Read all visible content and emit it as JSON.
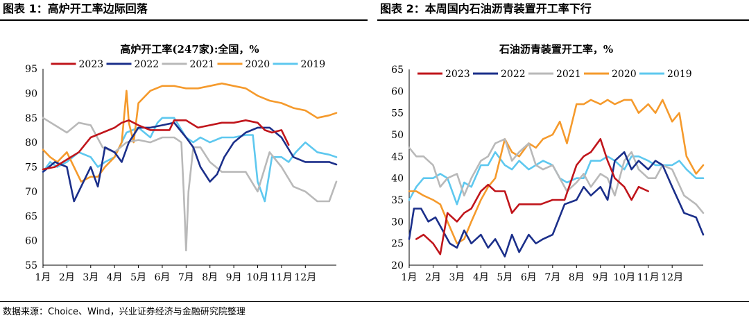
{
  "header": {
    "left_title": "图表 1：高炉开工率边际回落",
    "right_title": "图表 2：本周国内石油沥青装置开工率下行"
  },
  "footer": {
    "source": "数据来源：Choice、Wind，兴业证券经济与金融研究院整理"
  },
  "colors": {
    "2023": "#c0151b",
    "2022": "#1b2f8a",
    "2021": "#b9b9b9",
    "2020": "#f59a2c",
    "2019": "#5ec8ef"
  },
  "chart_data": [
    {
      "type": "line",
      "title": "高炉开工率(247家):全国，%",
      "ylim": [
        55,
        95
      ],
      "yticks": [
        55,
        60,
        65,
        70,
        75,
        80,
        85,
        90,
        95
      ],
      "xticklabels": [
        "1月",
        "2月",
        "3月",
        "4月",
        "5月",
        "6月",
        "7月",
        "8月",
        "9月",
        "10月",
        "11月",
        "12月"
      ],
      "xlim": [
        1,
        13.3
      ],
      "legend_position": "top",
      "series": [
        {
          "name": "2023",
          "color": "#c0151b",
          "x": [
            1,
            1.5,
            2,
            2.5,
            3,
            3.5,
            4,
            4.3,
            4.6,
            5,
            5.5,
            6,
            6.3,
            6.5,
            7,
            7.5,
            8,
            8.5,
            9,
            9.5,
            10,
            10.3,
            10.6,
            11,
            11.3
          ],
          "y": [
            74.5,
            75,
            76.5,
            78,
            81,
            82,
            83,
            84,
            84.5,
            83.5,
            82.5,
            82.5,
            82.5,
            84.5,
            84.5,
            83,
            83.5,
            84,
            84,
            84.5,
            84,
            82.5,
            82,
            82.5,
            79.5
          ]
        },
        {
          "name": "2022",
          "color": "#1b2f8a",
          "x": [
            1,
            1.5,
            2,
            2.3,
            2.6,
            3,
            3.3,
            3.6,
            4,
            4.3,
            4.6,
            5,
            5.5,
            6,
            6.5,
            7,
            7.3,
            7.6,
            8,
            8.3,
            8.6,
            9,
            9.5,
            10,
            10.5,
            11,
            11.5,
            12,
            12.5,
            13,
            13.3
          ],
          "y": [
            74,
            76,
            75,
            68,
            71,
            75,
            71,
            79,
            78,
            76,
            80,
            83,
            83,
            83.5,
            84,
            81,
            79,
            75,
            72,
            73.5,
            77,
            80,
            82,
            83,
            83,
            81,
            77,
            76,
            76,
            76,
            75.5
          ]
        },
        {
          "name": "2021",
          "color": "#b9b9b9",
          "x": [
            1,
            1.5,
            2,
            2.5,
            3,
            3.5,
            4,
            4.5,
            5,
            5.5,
            6,
            6.5,
            6.8,
            6.9,
            7,
            7.1,
            7.3,
            7.6,
            8,
            8.5,
            9,
            9.5,
            10,
            10.5,
            11,
            11.5,
            12,
            12.5,
            13,
            13.3
          ],
          "y": [
            85,
            83.5,
            82,
            84,
            83.5,
            79,
            78,
            80,
            80.5,
            80,
            81,
            81,
            80,
            70,
            58,
            70,
            79,
            79,
            76,
            74,
            74,
            74,
            70,
            78,
            75,
            71,
            70,
            68,
            68,
            72
          ]
        },
        {
          "name": "2020",
          "color": "#f59a2c",
          "x": [
            1,
            1.3,
            1.6,
            2,
            2.3,
            2.6,
            3,
            3.3,
            3.6,
            4,
            4.3,
            4.5,
            4.6,
            4.8,
            5,
            5.5,
            6,
            6.5,
            7,
            7.5,
            8,
            8.5,
            9,
            9.5,
            10,
            10.5,
            11,
            11.5,
            12,
            12.5,
            13,
            13.3
          ],
          "y": [
            78.5,
            77,
            76,
            78,
            75,
            72,
            73,
            73,
            75,
            77,
            80,
            90.5,
            84,
            80,
            88,
            90.5,
            91.5,
            91.5,
            91,
            91,
            91.5,
            92,
            91.5,
            91,
            89.5,
            88.5,
            88,
            87,
            86.5,
            85,
            85.5,
            86
          ]
        },
        {
          "name": "2019",
          "color": "#5ec8ef",
          "x": [
            1,
            1.3,
            1.6,
            2,
            2.5,
            3,
            3.3,
            3.6,
            4,
            4.5,
            5,
            5.5,
            5.8,
            6,
            6.5,
            7,
            7.3,
            7.6,
            8,
            8.5,
            9,
            9.5,
            9.8,
            10,
            10.3,
            10.6,
            11,
            11.3,
            11.6,
            12,
            12.5,
            13,
            13.3
          ],
          "y": [
            74,
            76,
            75,
            76,
            78,
            77,
            75,
            76,
            77,
            82,
            83,
            81,
            84,
            85,
            85,
            81,
            80,
            81,
            80,
            81,
            81,
            81.5,
            81.5,
            72,
            68,
            77,
            77,
            76,
            78,
            80,
            78,
            77.5,
            77
          ]
        }
      ]
    },
    {
      "type": "line",
      "title": "石油沥青装置开工率，%",
      "ylim": [
        20,
        65
      ],
      "yticks": [
        20,
        25,
        30,
        35,
        40,
        45,
        50,
        55,
        60,
        65
      ],
      "xticklabels": [
        "1月",
        "2月",
        "3月",
        "4月",
        "5月",
        "6月",
        "7月",
        "8月",
        "9月",
        "10月",
        "11月",
        "12月"
      ],
      "xlim": [
        1,
        13.3
      ],
      "legend_position": "top",
      "series": [
        {
          "name": "2023",
          "color": "#c0151b",
          "x": [
            1.3,
            1.6,
            2,
            2.3,
            2.6,
            3,
            3.3,
            3.6,
            4,
            4.3,
            4.6,
            5,
            5.3,
            5.6,
            6,
            6.5,
            7,
            7.5,
            8,
            8.3,
            8.6,
            9,
            9.3,
            9.6,
            10,
            10.3,
            10.6,
            11
          ],
          "y": [
            26,
            27,
            25,
            22.5,
            32,
            30,
            32,
            33,
            37,
            38.5,
            37,
            37,
            32,
            34,
            34,
            34,
            35,
            35,
            43,
            45,
            46,
            49,
            44,
            40,
            38,
            35,
            38,
            37
          ]
        },
        {
          "name": "2022",
          "color": "#1b2f8a",
          "x": [
            1,
            1.2,
            1.5,
            1.8,
            2.1,
            2.4,
            2.7,
            3,
            3.3,
            3.6,
            4,
            4.3,
            4.6,
            5,
            5.3,
            5.6,
            6,
            6.3,
            6.6,
            7,
            7.5,
            8,
            8.3,
            8.6,
            9,
            9.3,
            9.6,
            10,
            10.3,
            10.6,
            11,
            11.3,
            11.6,
            12,
            12.5,
            13,
            13.3
          ],
          "y": [
            26,
            33,
            33,
            30,
            31,
            28,
            25,
            24,
            28,
            25,
            27,
            24,
            26,
            22,
            27,
            23,
            27,
            25,
            26,
            27,
            34,
            35,
            38,
            36,
            38,
            35,
            44,
            46,
            42,
            44,
            42,
            44,
            43,
            38,
            32,
            31,
            27
          ]
        },
        {
          "name": "2021",
          "color": "#b9b9b9",
          "x": [
            1,
            1.3,
            1.6,
            2,
            2.3,
            2.6,
            3,
            3.3,
            3.6,
            4,
            4.3,
            4.6,
            5,
            5.3,
            5.6,
            6,
            6.3,
            6.6,
            7,
            7.3,
            7.6,
            8,
            8.3,
            8.6,
            9,
            9.3,
            9.6,
            10,
            10.3,
            10.6,
            11,
            11.3,
            11.6,
            12,
            12.5,
            13,
            13.3
          ],
          "y": [
            47,
            45,
            45,
            43,
            38,
            40,
            41,
            36,
            40,
            44,
            45,
            48,
            49,
            44,
            46,
            48,
            43,
            42,
            43,
            40,
            37,
            39,
            41,
            38,
            41,
            40,
            36,
            44,
            46,
            42,
            40,
            40,
            43,
            42,
            36,
            34,
            32
          ]
        },
        {
          "name": "2020",
          "color": "#f59a2c",
          "x": [
            1,
            1.3,
            1.6,
            2,
            2.3,
            2.6,
            3,
            3.3,
            3.6,
            4,
            4.3,
            4.6,
            5,
            5.3,
            5.6,
            6,
            6.3,
            6.6,
            7,
            7.3,
            7.6,
            8,
            8.3,
            8.6,
            9,
            9.3,
            9.6,
            10,
            10.3,
            10.6,
            11,
            11.3,
            11.6,
            12,
            12.3,
            12.6,
            13,
            13.3
          ],
          "y": [
            37,
            37,
            36,
            35,
            34,
            30,
            25,
            26,
            30,
            35,
            38,
            40,
            49,
            46,
            45,
            48,
            47,
            49,
            50,
            53,
            48,
            57,
            57,
            58,
            57,
            58,
            57,
            58,
            58,
            55,
            57,
            55,
            58,
            53,
            55,
            45,
            41,
            43
          ]
        },
        {
          "name": "2019",
          "color": "#5ec8ef",
          "x": [
            1,
            1.3,
            1.6,
            2,
            2.3,
            2.6,
            3,
            3.3,
            3.6,
            4,
            4.3,
            4.6,
            5,
            5.3,
            5.6,
            6,
            6.3,
            6.6,
            7,
            7.3,
            7.6,
            8,
            8.3,
            8.6,
            9,
            9.3,
            9.6,
            10,
            10.3,
            10.6,
            11,
            11.3,
            11.6,
            12,
            12.3,
            12.6,
            13,
            13.3
          ],
          "y": [
            35,
            38,
            40,
            40,
            41,
            40,
            34,
            39,
            38,
            43,
            43,
            46,
            43,
            42,
            44,
            42,
            43,
            44,
            43,
            40,
            39,
            40,
            40,
            44,
            44,
            45,
            44,
            42,
            45,
            45,
            44,
            43,
            43,
            43,
            44,
            42,
            40,
            40
          ]
        }
      ]
    }
  ]
}
